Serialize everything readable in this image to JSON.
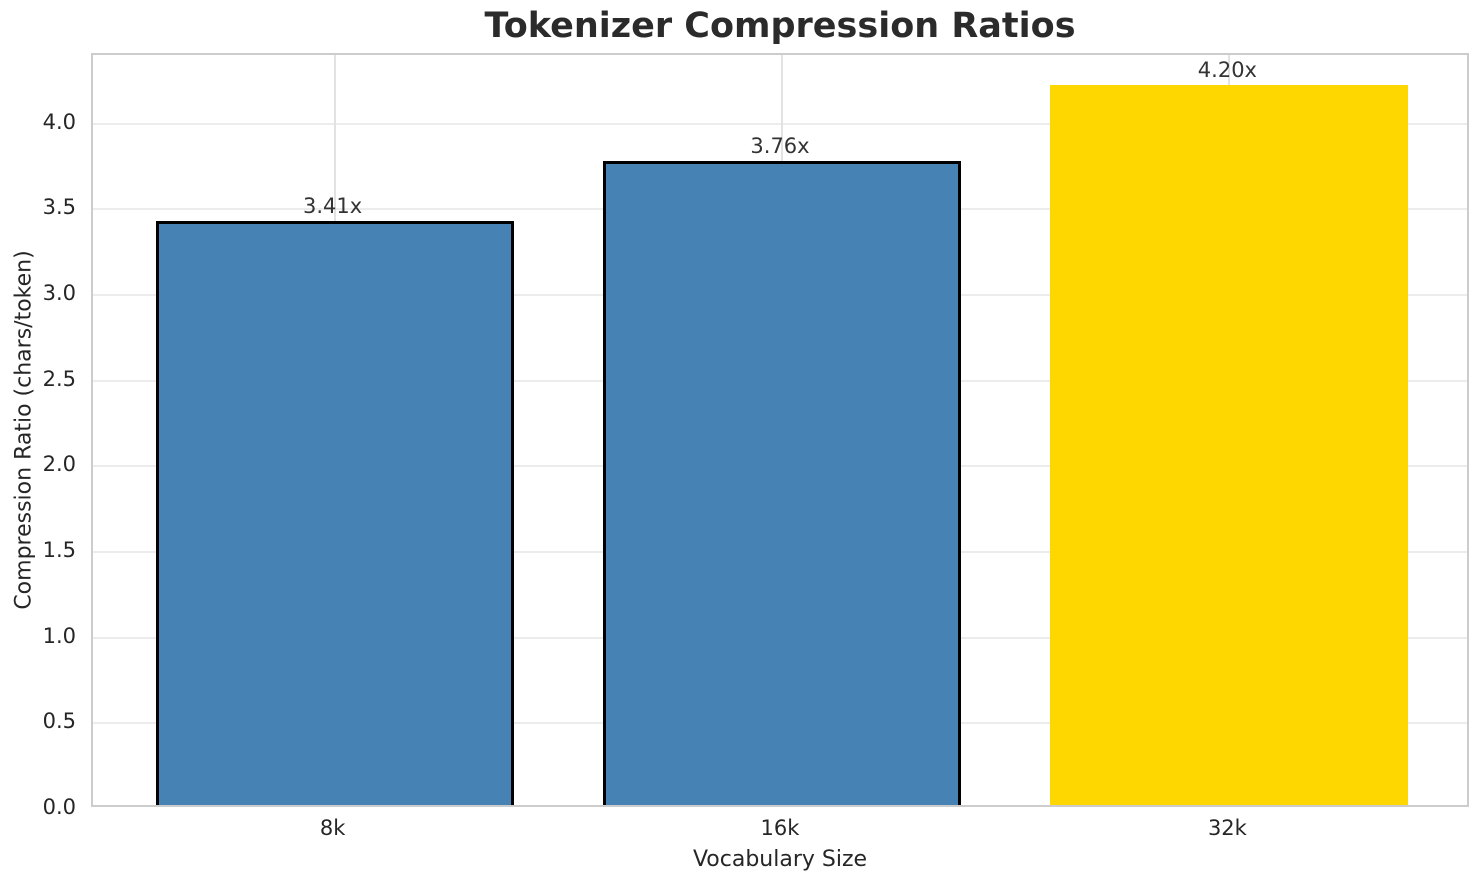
{
  "figure": {
    "background_color": "#ffffff",
    "text_color": "#262626",
    "title_color": "#2b2b2b",
    "grid_color": "#ececec",
    "spine_color": "#cccccc"
  },
  "chart_data": {
    "type": "bar",
    "title": "Tokenizer Compression Ratios",
    "xlabel": "Vocabulary Size",
    "ylabel": "Compression Ratio (chars/token)",
    "categories": [
      "8k",
      "16k",
      "32k"
    ],
    "values": [
      3.41,
      3.76,
      4.2
    ],
    "bar_value_labels": [
      "3.41x",
      "3.76x",
      "4.20x"
    ],
    "bar_colors": [
      "#4682b4",
      "#4682b4",
      "#ffd700"
    ],
    "bar_edge_colors": [
      "#000000",
      "#000000",
      "none"
    ],
    "base_color": "#4682b4",
    "highlight_color": "#ffd700",
    "ylim": [
      0,
      4.4
    ],
    "yticks": [
      0.0,
      0.5,
      1.0,
      1.5,
      2.0,
      2.5,
      3.0,
      3.5,
      4.0
    ],
    "ytick_labels": [
      "0.0",
      "0.5",
      "1.0",
      "1.5",
      "2.0",
      "2.5",
      "3.0",
      "3.5",
      "4.0"
    ],
    "grid": true,
    "grid_axes": "both",
    "legend_position": "none"
  }
}
